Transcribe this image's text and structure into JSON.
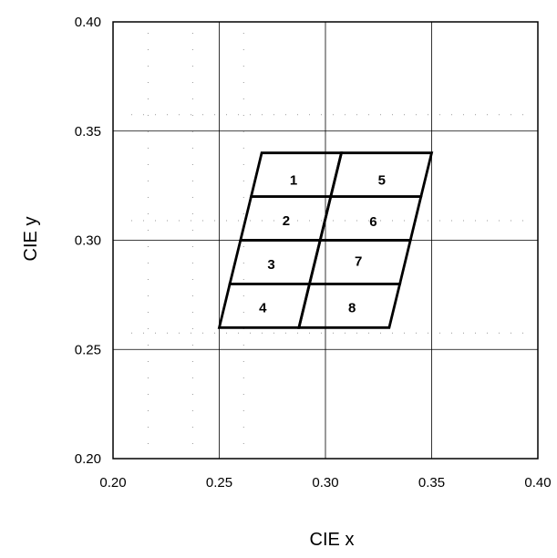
{
  "chart_data": {
    "type": "diagram",
    "xlabel": "CIE x",
    "ylabel": "CIE y",
    "xlim": [
      0.2,
      0.4
    ],
    "ylim": [
      0.2,
      0.4
    ],
    "x_ticks": [
      "0.20",
      "0.25",
      "0.30",
      "0.35",
      "0.40"
    ],
    "y_ticks": [
      "0.20",
      "0.25",
      "0.30",
      "0.35",
      "0.40"
    ],
    "x_tick_values": [
      0.2,
      0.25,
      0.3,
      0.35,
      0.4
    ],
    "y_tick_values": [
      0.2,
      0.25,
      0.3,
      0.35,
      0.4
    ],
    "grid": true,
    "chromaticity_bins": [
      {
        "label": "1",
        "corners": [
          [
            0.27,
            0.34
          ],
          [
            0.3075,
            0.34
          ],
          [
            0.3025,
            0.32
          ],
          [
            0.265,
            0.32
          ]
        ]
      },
      {
        "label": "5",
        "corners": [
          [
            0.3075,
            0.34
          ],
          [
            0.35,
            0.34
          ],
          [
            0.345,
            0.32
          ],
          [
            0.3025,
            0.32
          ]
        ]
      },
      {
        "label": "2",
        "corners": [
          [
            0.265,
            0.32
          ],
          [
            0.3025,
            0.32
          ],
          [
            0.2975,
            0.3
          ],
          [
            0.26,
            0.3
          ]
        ]
      },
      {
        "label": "6",
        "corners": [
          [
            0.3025,
            0.32
          ],
          [
            0.345,
            0.32
          ],
          [
            0.34,
            0.3
          ],
          [
            0.2975,
            0.3
          ]
        ]
      },
      {
        "label": "3",
        "corners": [
          [
            0.26,
            0.3
          ],
          [
            0.2975,
            0.3
          ],
          [
            0.2925,
            0.28
          ],
          [
            0.255,
            0.28
          ]
        ]
      },
      {
        "label": "7",
        "corners": [
          [
            0.2975,
            0.3
          ],
          [
            0.34,
            0.3
          ],
          [
            0.335,
            0.28
          ],
          [
            0.2925,
            0.28
          ]
        ]
      },
      {
        "label": "4",
        "corners": [
          [
            0.255,
            0.28
          ],
          [
            0.2925,
            0.28
          ],
          [
            0.2875,
            0.26
          ],
          [
            0.25,
            0.26
          ]
        ]
      },
      {
        "label": "8",
        "corners": [
          [
            0.2925,
            0.28
          ],
          [
            0.335,
            0.28
          ],
          [
            0.33,
            0.26
          ],
          [
            0.2875,
            0.26
          ]
        ]
      }
    ],
    "label_positions": [
      {
        "label": "1",
        "x": 0.285,
        "y": 0.3275
      },
      {
        "label": "5",
        "x": 0.3265,
        "y": 0.3275
      },
      {
        "label": "2",
        "x": 0.2815,
        "y": 0.309
      },
      {
        "label": "6",
        "x": 0.3225,
        "y": 0.3085
      },
      {
        "label": "3",
        "x": 0.2745,
        "y": 0.289
      },
      {
        "label": "7",
        "x": 0.3155,
        "y": 0.2905
      },
      {
        "label": "4",
        "x": 0.2705,
        "y": 0.269
      },
      {
        "label": "8",
        "x": 0.3125,
        "y": 0.269
      }
    ]
  }
}
